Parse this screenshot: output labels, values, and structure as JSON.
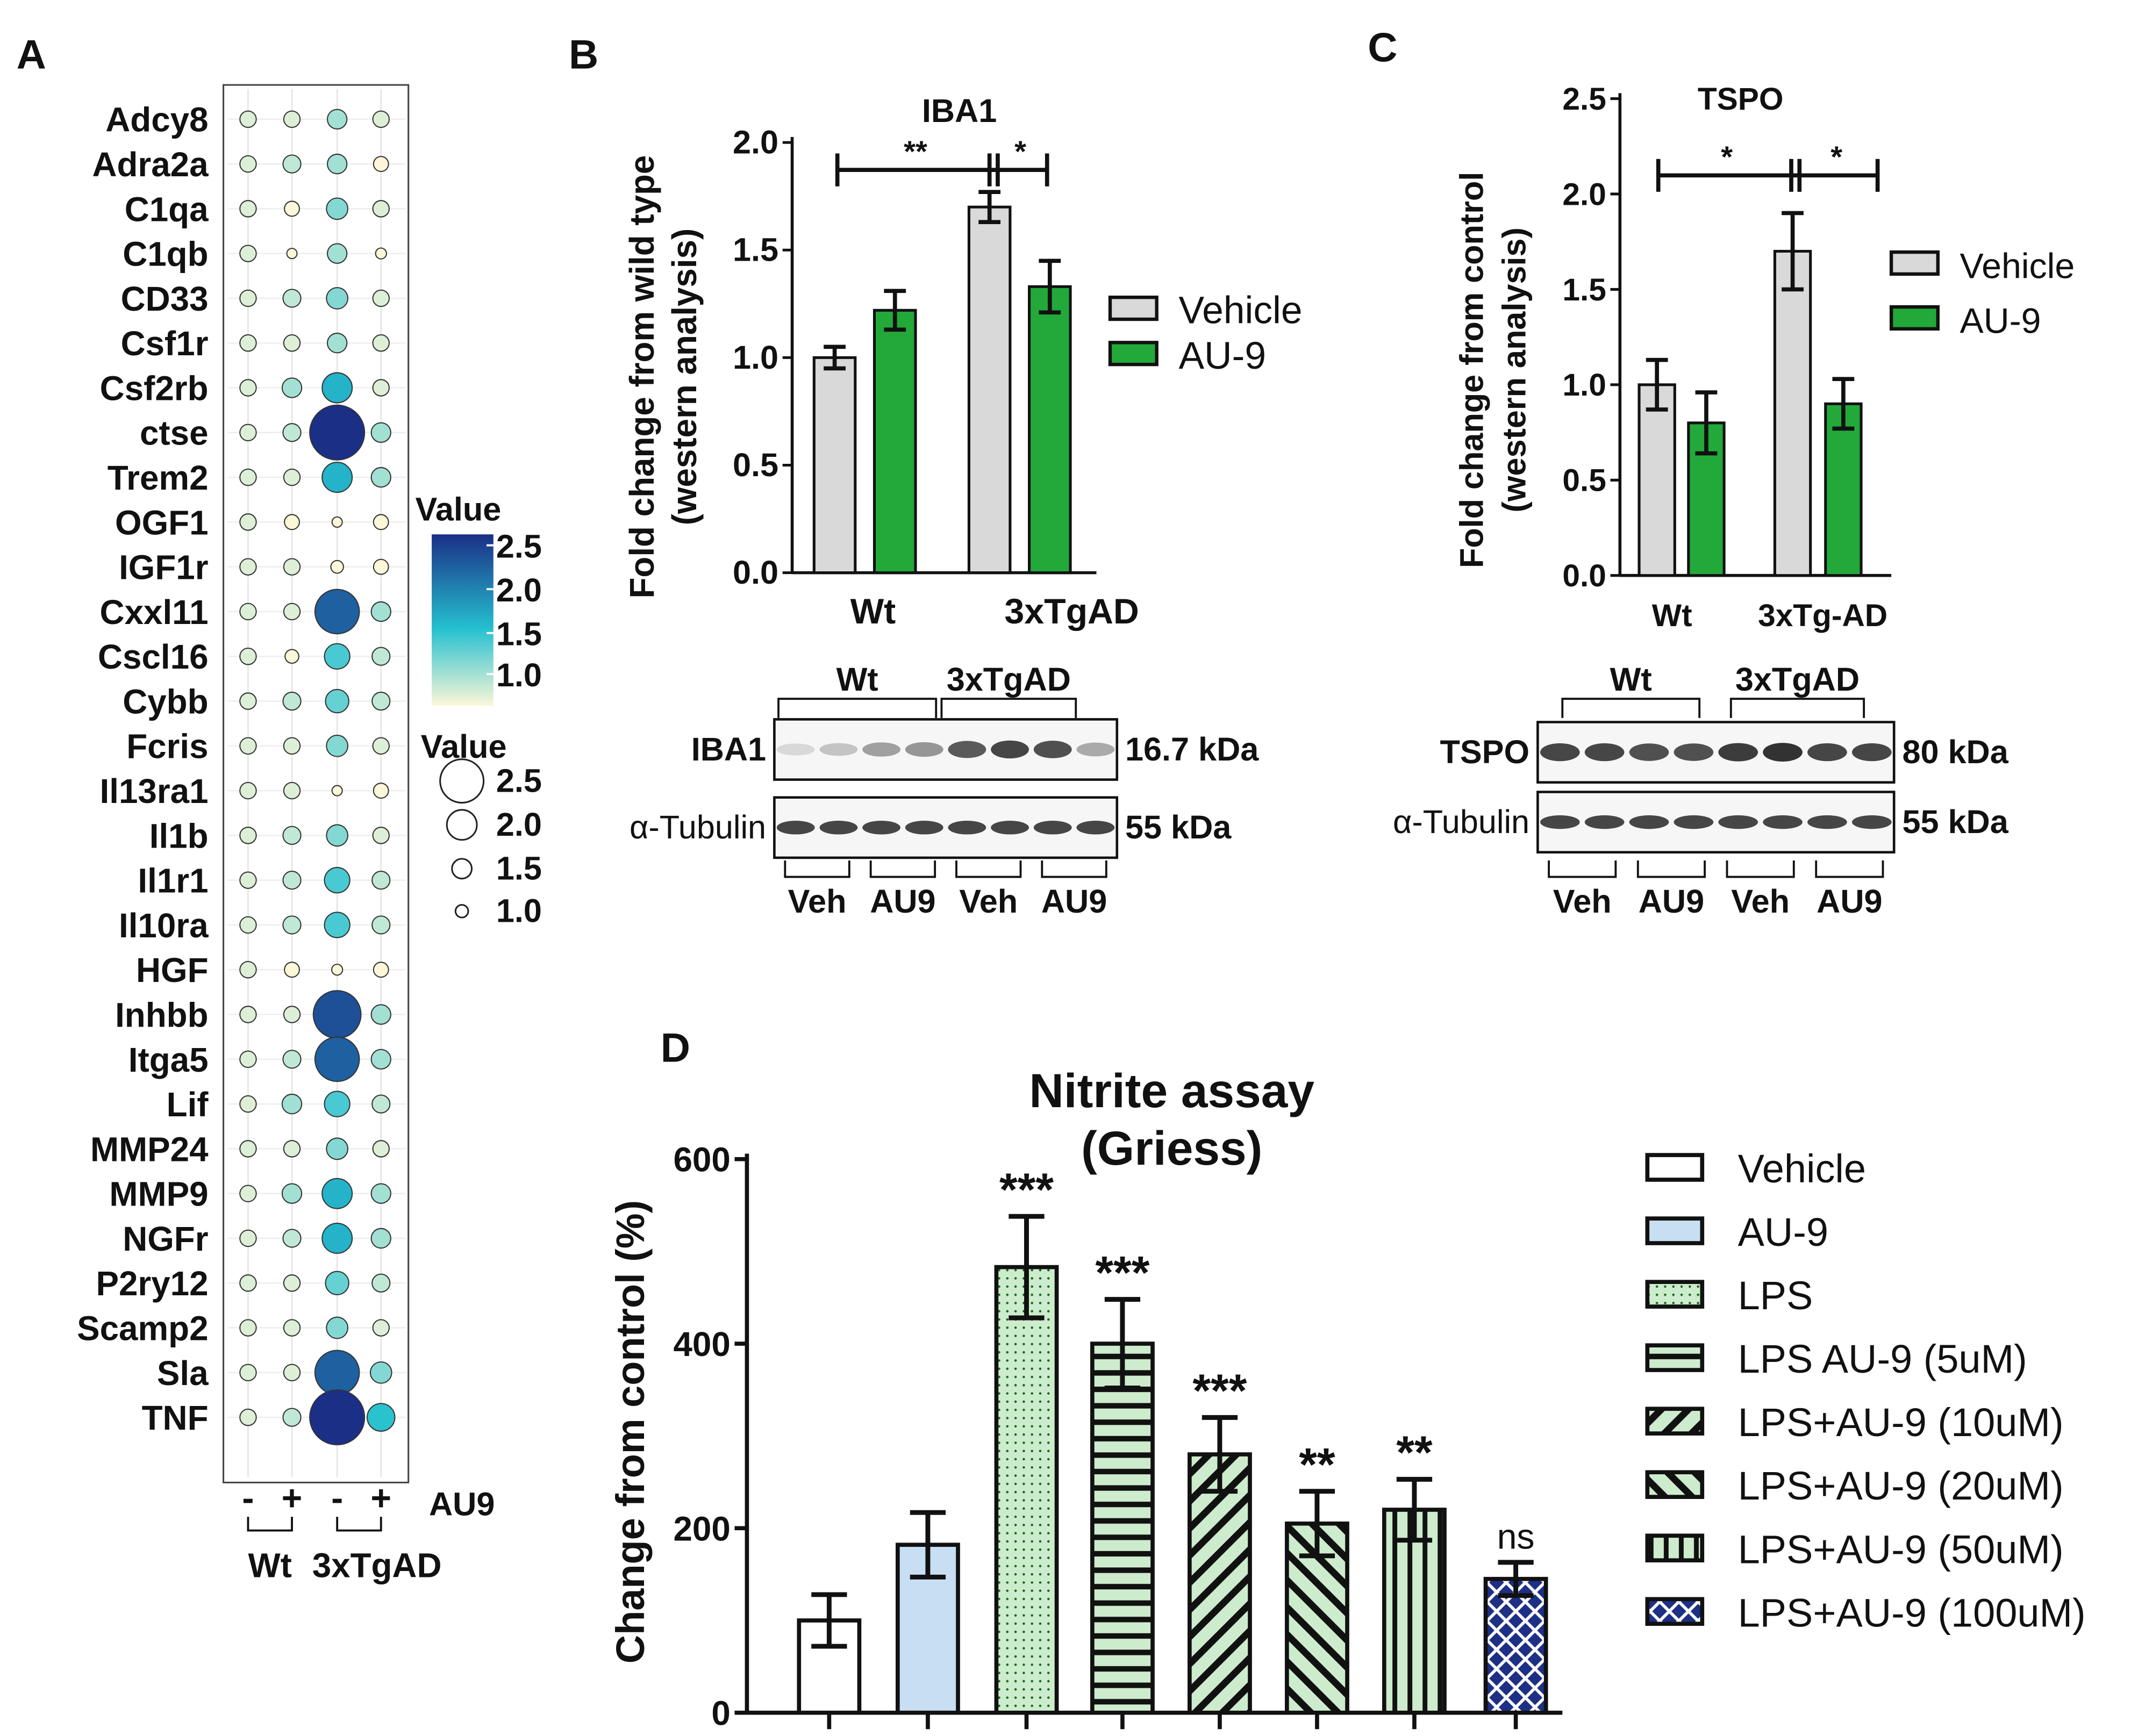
{
  "panel_letters": {
    "a": "A",
    "b": "B",
    "c": "C",
    "d": "D"
  },
  "colors": {
    "vehicle_gray": "#d9d9d9",
    "au9_green": "#22a93a",
    "outline": "#111111",
    "heat_low": "#fbf7d8",
    "heat_mid": "#25c0cf",
    "heat_high": "#1b2f87",
    "lps_fill": "#cdeccd",
    "au9_blue": "#c8def2",
    "dark_blue": "#1e2f86"
  },
  "chart_data": [
    {
      "id": "A",
      "type": "dotplot",
      "genes": [
        "Adcy8",
        "Adra2a",
        "C1qa",
        "C1qb",
        "CD33",
        "Csf1r",
        "Csf2rb",
        "ctse",
        "Trem2",
        "OGF1",
        "IGF1r",
        "Cxxl11",
        "Cscl16",
        "Cybb",
        "Fcris",
        "Il13ra1",
        "Il1b",
        "Il1r1",
        "Il10ra",
        "HGF",
        "Inhbb",
        "Itga5",
        "Lif",
        "MMP24",
        "MMP9",
        "NGFr",
        "P2ry12",
        "Scamp2",
        "Sla",
        "TNF"
      ],
      "columns": [
        "-",
        "+",
        "-",
        "+"
      ],
      "au9_label": "AU9",
      "group_labels": [
        "Wt",
        "3xTgAD"
      ],
      "values": [
        [
          1.1,
          1.1,
          1.3,
          1.1
        ],
        [
          1.1,
          1.2,
          1.3,
          1.0
        ],
        [
          1.1,
          1.0,
          1.4,
          1.1
        ],
        [
          1.1,
          0.5,
          1.3,
          0.6
        ],
        [
          1.1,
          1.2,
          1.4,
          1.1
        ],
        [
          1.1,
          1.1,
          1.3,
          1.1
        ],
        [
          1.1,
          1.3,
          1.8,
          1.1
        ],
        [
          1.1,
          1.2,
          2.6,
          1.3
        ],
        [
          1.1,
          1.1,
          1.8,
          1.3
        ],
        [
          1.1,
          1.0,
          0.5,
          1.0
        ],
        [
          1.1,
          1.1,
          0.8,
          1.0
        ],
        [
          1.1,
          1.1,
          2.3,
          1.3
        ],
        [
          1.1,
          0.9,
          1.6,
          1.2
        ],
        [
          1.1,
          1.2,
          1.5,
          1.2
        ],
        [
          1.1,
          1.1,
          1.4,
          1.1
        ],
        [
          1.1,
          1.1,
          0.5,
          1.0
        ],
        [
          1.1,
          1.2,
          1.4,
          1.1
        ],
        [
          1.1,
          1.2,
          1.6,
          1.2
        ],
        [
          1.1,
          1.2,
          1.6,
          1.2
        ],
        [
          1.1,
          1.0,
          0.6,
          1.0
        ],
        [
          1.1,
          1.1,
          2.4,
          1.3
        ],
        [
          1.1,
          1.2,
          2.3,
          1.3
        ],
        [
          1.1,
          1.3,
          1.6,
          1.2
        ],
        [
          1.1,
          1.1,
          1.4,
          1.1
        ],
        [
          1.1,
          1.3,
          1.8,
          1.3
        ],
        [
          1.1,
          1.2,
          1.8,
          1.3
        ],
        [
          1.1,
          1.1,
          1.5,
          1.2
        ],
        [
          1.1,
          1.1,
          1.4,
          1.1
        ],
        [
          1.1,
          1.1,
          2.3,
          1.4
        ],
        [
          1.1,
          1.2,
          2.6,
          1.7
        ]
      ],
      "color_legend": {
        "title": "Value",
        "ticks": [
          "2.5",
          "2.0",
          "1.5",
          "1.0"
        ]
      },
      "size_legend": {
        "title": "Value",
        "ticks": [
          "2.5",
          "2.0",
          "1.5",
          "1.0"
        ]
      }
    },
    {
      "id": "B",
      "type": "bar",
      "title": "IBA1",
      "ylabel_lines": [
        "Fold change from wild type",
        "(western analysis)"
      ],
      "ylim": [
        0,
        2.0
      ],
      "yticks": [
        "0.0",
        "0.5",
        "1.0",
        "1.5",
        "2.0"
      ],
      "categories": [
        "Wt",
        "3xTgAD"
      ],
      "series": [
        {
          "name": "Vehicle",
          "values": [
            1.0,
            1.7
          ],
          "errors": [
            0.05,
            0.07
          ]
        },
        {
          "name": "AU-9",
          "values": [
            1.22,
            1.33
          ],
          "errors": [
            0.09,
            0.12
          ]
        }
      ],
      "significance": [
        "**",
        "*"
      ]
    },
    {
      "id": "C",
      "type": "bar",
      "title": "TSPO",
      "ylabel_lines": [
        "Fold change from control",
        "(western analysis)"
      ],
      "ylim": [
        0,
        2.5
      ],
      "yticks": [
        "0.0",
        "0.5",
        "1.0",
        "1.5",
        "2.0",
        "2.5"
      ],
      "categories": [
        "Wt",
        "3xTg-AD"
      ],
      "series": [
        {
          "name": "Vehicle",
          "values": [
            1.0,
            1.7
          ],
          "errors": [
            0.13,
            0.2
          ]
        },
        {
          "name": "AU-9",
          "values": [
            0.8,
            0.9
          ],
          "errors": [
            0.16,
            0.13
          ]
        }
      ],
      "significance": [
        "*",
        "*"
      ]
    },
    {
      "id": "D",
      "type": "bar",
      "title_lines": [
        "Nitrite assay",
        "(Griess)"
      ],
      "ylabel": "Change from control (%)",
      "ylim": [
        0,
        600
      ],
      "yticks": [
        "0",
        "200",
        "400",
        "600"
      ],
      "categories": [
        "Vehicle",
        "AU-9",
        "LPS",
        "LPS AU-9 (5uM)",
        "LPS+AU-9 (10uM)",
        "LPS+AU-9 (20uM)",
        "LPS+AU-9 (50uM)",
        "LPS+AU-9 (100uM)"
      ],
      "values": [
        100,
        182,
        483,
        400,
        280,
        205,
        220,
        145
      ],
      "errors": [
        28,
        35,
        55,
        48,
        40,
        35,
        33,
        18
      ],
      "significance": [
        "",
        "",
        "***",
        "***",
        "***",
        "**",
        "**",
        "ns"
      ]
    }
  ],
  "blot_B": {
    "group_labels": [
      "Wt",
      "3xTgAD"
    ],
    "rows": [
      {
        "label": "IBA1",
        "kda": "16.7 kDa"
      },
      {
        "label": "α-Tubulin",
        "kda": "55 kDa"
      }
    ],
    "lane_labels": [
      "Veh",
      "AU9",
      "Veh",
      "AU9"
    ]
  },
  "blot_C": {
    "group_labels": [
      "Wt",
      "3xTgAD"
    ],
    "rows": [
      {
        "label": "TSPO",
        "kda": "80 kDa"
      },
      {
        "label": "α-Tubulin",
        "kda": "55 kDa"
      }
    ],
    "lane_labels": [
      "Veh",
      "AU9",
      "Veh",
      "AU9"
    ]
  }
}
